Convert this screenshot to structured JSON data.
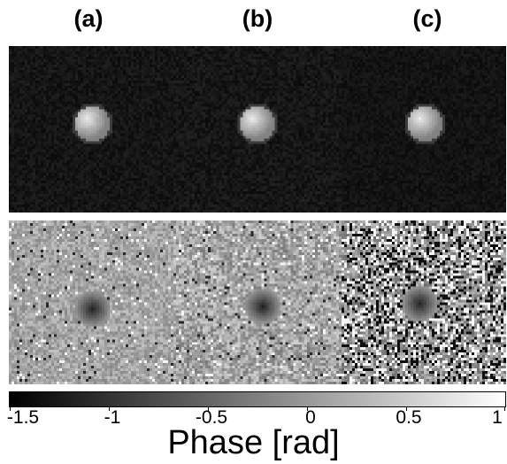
{
  "figure": {
    "panel_labels": [
      "(a)",
      "(b)",
      "(c)"
    ],
    "colorbar": {
      "tick_labels": [
        "-1.5",
        "-1",
        "-0.5",
        "0",
        "0.5",
        "1"
      ],
      "title": "Phase [rad]",
      "range": [
        -1.5,
        1
      ],
      "colormap": "gray"
    },
    "rows": [
      "magnitude",
      "phase"
    ],
    "colors": {
      "background": "#ffffff",
      "image_dark": "#0a0a0a"
    }
  }
}
